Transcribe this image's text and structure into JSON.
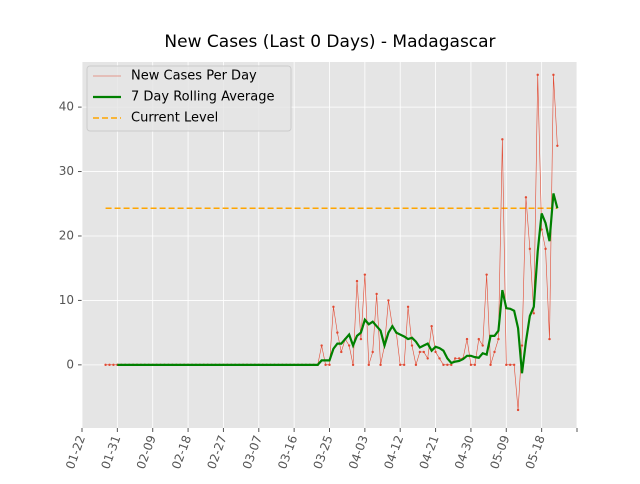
{
  "chart_data": {
    "type": "line",
    "title": "New Cases (Last 0 Days) - Madagascar",
    "x": [
      "01-28",
      "01-29",
      "01-30",
      "01-31",
      "02-01",
      "02-02",
      "02-03",
      "02-04",
      "02-05",
      "02-06",
      "02-07",
      "02-08",
      "02-09",
      "02-10",
      "02-11",
      "02-12",
      "02-13",
      "02-14",
      "02-15",
      "02-16",
      "02-17",
      "02-18",
      "02-19",
      "02-20",
      "02-21",
      "02-22",
      "02-23",
      "02-24",
      "02-25",
      "02-26",
      "02-27",
      "02-28",
      "02-29",
      "03-01",
      "03-02",
      "03-03",
      "03-04",
      "03-05",
      "03-06",
      "03-07",
      "03-08",
      "03-09",
      "03-10",
      "03-11",
      "03-12",
      "03-13",
      "03-14",
      "03-15",
      "03-16",
      "03-17",
      "03-18",
      "03-19",
      "03-20",
      "03-21",
      "03-22",
      "03-23",
      "03-24",
      "03-25",
      "03-26",
      "03-27",
      "03-28",
      "03-29",
      "03-30",
      "03-31",
      "04-01",
      "04-02",
      "04-03",
      "04-04",
      "04-05",
      "04-06",
      "04-07",
      "04-08",
      "04-09",
      "04-10",
      "04-11",
      "04-12",
      "04-13",
      "04-14",
      "04-15",
      "04-16",
      "04-17",
      "04-18",
      "04-19",
      "04-20",
      "04-21",
      "04-22",
      "04-23",
      "04-24",
      "04-25",
      "04-26",
      "04-27",
      "04-28",
      "04-29",
      "04-30",
      "05-01",
      "05-02",
      "05-03",
      "05-04",
      "05-05",
      "05-06",
      "05-07",
      "05-08",
      "05-09",
      "05-10",
      "05-11",
      "05-12",
      "05-13",
      "05-14",
      "05-15",
      "05-16",
      "05-17",
      "05-18",
      "05-19",
      "05-20",
      "05-21",
      "05-22"
    ],
    "series": [
      {
        "name": "New Cases Per Day",
        "color": "#e24a33",
        "markers": true,
        "values": [
          0,
          0,
          0,
          0,
          0,
          0,
          0,
          0,
          0,
          0,
          0,
          0,
          0,
          0,
          0,
          0,
          0,
          0,
          0,
          0,
          0,
          0,
          0,
          0,
          0,
          0,
          0,
          0,
          0,
          0,
          0,
          0,
          0,
          0,
          0,
          0,
          0,
          0,
          0,
          0,
          0,
          0,
          0,
          0,
          0,
          0,
          0,
          0,
          0,
          0,
          0,
          0,
          0,
          0,
          0,
          3,
          0,
          0,
          9,
          5,
          2,
          4,
          3,
          0,
          13,
          4,
          14,
          0,
          2,
          11,
          0,
          3,
          10,
          6,
          5,
          0,
          0,
          9,
          3,
          0,
          2,
          2,
          1,
          6,
          2,
          1,
          0,
          0,
          0,
          1,
          1,
          1,
          4,
          0,
          0,
          4,
          3,
          14,
          0,
          2,
          4,
          35,
          0,
          0,
          0,
          -7,
          3,
          26,
          18,
          8,
          45,
          21,
          18,
          4,
          45,
          34
        ]
      },
      {
        "name": "7 Day Rolling Average",
        "color": "#008000",
        "markers": false,
        "values": [
          null,
          null,
          null,
          0,
          0,
          0,
          0,
          0,
          0,
          0,
          0,
          0,
          0,
          0,
          0,
          0,
          0,
          0,
          0,
          0,
          0,
          0,
          0,
          0,
          0,
          0,
          0,
          0,
          0,
          0,
          0,
          0,
          0,
          0,
          0,
          0,
          0,
          0,
          0,
          0,
          0,
          0,
          0,
          0,
          0,
          0,
          0,
          0,
          0,
          0,
          0,
          0,
          0,
          0,
          0,
          0.7,
          0.7,
          0.7,
          2.5,
          3.3,
          3.3,
          4,
          4.7,
          3,
          4.5,
          5,
          7,
          6.3,
          6.7,
          6,
          5.3,
          3,
          5,
          6,
          5,
          4.7,
          4.4,
          4,
          4.2,
          3.6,
          2.7,
          3,
          3.3,
          2.2,
          2.8,
          2.6,
          2.2,
          1,
          0.3,
          0.5,
          0.6,
          0.9,
          1.4,
          1.4,
          1.2,
          1.1,
          1.8,
          1.6,
          4.5,
          4.5,
          5.3,
          11.6,
          8.8,
          8.7,
          8.4,
          5.7,
          -1.3,
          3.6,
          7.6,
          9,
          17.6,
          23.5,
          22,
          19.2,
          26.6,
          24.3
        ]
      }
    ],
    "hline": {
      "name": "Current Level",
      "value": 24.3,
      "color": "#ffa500"
    },
    "ylim": [
      -9.8,
      47
    ],
    "yticks": [
      0,
      10,
      20,
      30,
      40
    ],
    "xticks": [
      "01-22",
      "01-31",
      "02-09",
      "02-18",
      "02-27",
      "03-07",
      "03-16",
      "03-25",
      "04-03",
      "04-12",
      "04-21",
      "04-30",
      "05-09",
      "05-18",
      null
    ],
    "grid": true,
    "legend": "upper left"
  }
}
